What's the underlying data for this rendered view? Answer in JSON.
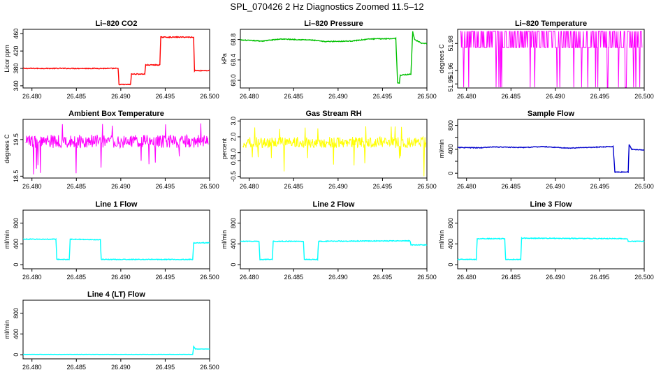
{
  "figure_title": "SPL_070426  2 Hz Diagnostics Zoomed 11.5–12",
  "chart_data": [
    {
      "type": "line",
      "title": "Li–820 CO2",
      "ylabel": "Licor ppm",
      "color": "#ff0000",
      "xlim": [
        26.479,
        26.5
      ],
      "ylim": [
        335,
        470
      ],
      "yticks": [
        340,
        380,
        420,
        460
      ],
      "xticks": [
        26.48,
        26.485,
        26.49,
        26.495,
        26.5
      ],
      "xtick_labels": [
        "26.480",
        "26.485",
        "26.490",
        "26.495",
        "26.500"
      ],
      "x": [
        26.479,
        26.4897,
        26.4898,
        26.4911,
        26.4912,
        26.4927,
        26.4928,
        26.4944,
        26.4945,
        26.4982,
        26.4983,
        26.5
      ],
      "y": [
        380,
        380,
        343,
        343,
        367,
        367,
        388,
        388,
        452,
        452,
        375,
        375
      ],
      "noise": 1
    },
    {
      "type": "line",
      "title": "Li–820 Pressure",
      "ylabel": "kPa",
      "color": "#00c000",
      "xlim": [
        26.479,
        26.5
      ],
      "ylim": [
        67.85,
        69.0
      ],
      "yticks": [
        68.0,
        68.4,
        68.8
      ],
      "ytick_labels": [
        "68.0",
        "68.4",
        "68.8"
      ],
      "xticks": [
        26.48,
        26.485,
        26.49,
        26.495,
        26.5
      ],
      "xtick_labels": [
        "26.480",
        "26.485",
        "26.490",
        "26.495",
        "26.500"
      ],
      "x": [
        26.479,
        26.4815,
        26.4835,
        26.487,
        26.4885,
        26.4915,
        26.4935,
        26.4965,
        26.4967,
        26.4969,
        26.497,
        26.4982,
        26.4984,
        26.4986,
        26.4995,
        26.5
      ],
      "y": [
        68.79,
        68.77,
        68.81,
        68.79,
        68.76,
        68.77,
        68.81,
        68.82,
        67.95,
        67.95,
        68.1,
        68.12,
        68.96,
        68.8,
        68.72,
        68.72
      ],
      "noise": 0.008
    },
    {
      "type": "line",
      "title": "Li–820 Temperature",
      "ylabel": "degrees C",
      "color": "#ff00ff",
      "xlim": [
        26.479,
        26.5
      ],
      "ylim": [
        51.947,
        51.9905
      ],
      "yticks": [
        51.95,
        51.96,
        51.98
      ],
      "ytick_labels": [
        "51.95",
        "51.96",
        "51.98"
      ],
      "xticks": [
        26.48,
        26.485,
        26.49,
        26.495,
        26.5
      ],
      "xtick_labels": [
        "26.480",
        "26.485",
        "26.490",
        "26.495",
        "26.500"
      ],
      "levels": [
        51.947,
        51.977,
        51.989
      ],
      "x_range": [
        26.4793,
        26.4998
      ]
    },
    {
      "type": "line",
      "title": "Ambient Box Temperature",
      "ylabel": "degrees C",
      "color": "#ff00ff",
      "xlim": [
        26.479,
        26.5
      ],
      "ylim": [
        18.45,
        20.05
      ],
      "yticks": [
        18.5,
        19.5
      ],
      "ytick_labels": [
        "18.5",
        "19.5"
      ],
      "xticks": [
        26.48,
        26.485,
        26.49,
        26.495,
        26.5
      ],
      "xtick_labels": [
        "26.480",
        "26.485",
        "26.490",
        "26.495",
        "26.500"
      ],
      "mean": 19.45,
      "band": 0.18,
      "spike_low": 18.55,
      "spike_high": 19.95
    },
    {
      "type": "line",
      "title": "Gas Stream RH",
      "ylabel": "percent",
      "color": "#ffff00",
      "xlim": [
        26.479,
        26.5
      ],
      "ylim": [
        -0.6,
        3.1
      ],
      "yticks": [
        -0.5,
        0.5,
        1.0,
        2.0,
        3.0
      ],
      "ytick_labels": [
        "-0.5",
        "0.5",
        "1.0",
        "2.0",
        "3.0"
      ],
      "xticks": [
        26.48,
        26.485,
        26.49,
        26.495,
        26.5
      ],
      "xtick_labels": [
        "26.480",
        "26.485",
        "26.490",
        "26.495",
        "26.500"
      ],
      "mean": 1.65,
      "band": 0.35,
      "spike_low": -0.5,
      "spike_high": 2.8
    },
    {
      "type": "line",
      "title": "Sample Flow",
      "ylabel": "ml/min",
      "color": "#0000cc",
      "xlim": [
        26.479,
        26.5
      ],
      "ylim": [
        -80,
        900
      ],
      "yticks": [
        0,
        200,
        400,
        600,
        800
      ],
      "ytick_labels": [
        "0",
        "",
        "400",
        "",
        "800"
      ],
      "xticks": [
        26.48,
        26.485,
        26.49,
        26.495,
        26.5
      ],
      "xtick_labels": [
        "26.480",
        "26.485",
        "26.490",
        "26.495",
        "26.500"
      ],
      "x": [
        26.479,
        26.4815,
        26.483,
        26.4865,
        26.4885,
        26.4915,
        26.4935,
        26.4965,
        26.4967,
        26.4982,
        26.4983,
        26.4986,
        26.4995,
        26.5
      ],
      "y": [
        430,
        425,
        440,
        430,
        445,
        420,
        430,
        445,
        20,
        20,
        480,
        400,
        390,
        390
      ],
      "noise": 6
    },
    {
      "type": "line",
      "title": "Line 1 Flow",
      "ylabel": "ml/min",
      "color": "#00ffff",
      "xlim": [
        26.479,
        26.5
      ],
      "ylim": [
        -80,
        1050
      ],
      "yticks": [
        0,
        400,
        800
      ],
      "ytick_labels": [
        "0",
        "400",
        "800"
      ],
      "xticks": [
        26.48,
        26.485,
        26.49,
        26.495,
        26.5
      ],
      "xtick_labels": [
        "26.480",
        "26.485",
        "26.490",
        "26.495",
        "26.500"
      ],
      "x": [
        26.479,
        26.4827,
        26.4828,
        26.4842,
        26.4843,
        26.4877,
        26.4878,
        26.4981,
        26.4982,
        26.4984,
        26.5
      ],
      "y": [
        490,
        490,
        100,
        100,
        490,
        480,
        100,
        100,
        420,
        420,
        420
      ],
      "noise": 7
    },
    {
      "type": "line",
      "title": "Line 2 Flow",
      "ylabel": "ml/min",
      "color": "#00ffff",
      "xlim": [
        26.479,
        26.5
      ],
      "ylim": [
        -80,
        1050
      ],
      "yticks": [
        0,
        400,
        800
      ],
      "ytick_labels": [
        "0",
        "400",
        "800"
      ],
      "xticks": [
        26.48,
        26.485,
        26.49,
        26.495,
        26.5
      ],
      "xtick_labels": [
        "26.480",
        "26.485",
        "26.490",
        "26.495",
        "26.500"
      ],
      "x": [
        26.479,
        26.4811,
        26.4812,
        26.4826,
        26.4827,
        26.4861,
        26.4862,
        26.4877,
        26.4878,
        26.4981,
        26.4982,
        26.5
      ],
      "y": [
        450,
        450,
        100,
        100,
        450,
        450,
        100,
        100,
        450,
        460,
        380,
        380
      ],
      "noise": 7
    },
    {
      "type": "line",
      "title": "Line 3 Flow",
      "ylabel": "ml/min",
      "color": "#00ffff",
      "xlim": [
        26.479,
        26.5
      ],
      "ylim": [
        -80,
        1050
      ],
      "yticks": [
        0,
        400,
        800
      ],
      "ytick_labels": [
        "0",
        "400",
        "800"
      ],
      "xticks": [
        26.48,
        26.485,
        26.49,
        26.495,
        26.5
      ],
      "xtick_labels": [
        "26.480",
        "26.485",
        "26.490",
        "26.495",
        "26.500"
      ],
      "x": [
        26.479,
        26.4811,
        26.4812,
        26.4843,
        26.4844,
        26.4861,
        26.4862,
        26.4981,
        26.4982,
        26.5
      ],
      "y": [
        100,
        100,
        500,
        500,
        100,
        100,
        510,
        500,
        450,
        450
      ],
      "noise": 7
    },
    {
      "type": "line",
      "title": "Line 4 (LT) Flow",
      "ylabel": "ml/min",
      "color": "#00ffff",
      "xlim": [
        26.479,
        26.5
      ],
      "ylim": [
        -80,
        1050
      ],
      "yticks": [
        0,
        400,
        800
      ],
      "ytick_labels": [
        "0",
        "400",
        "800"
      ],
      "xticks": [
        26.48,
        26.485,
        26.49,
        26.495,
        26.5
      ],
      "xtick_labels": [
        "26.480",
        "26.485",
        "26.490",
        "26.495",
        "26.500"
      ],
      "x": [
        26.479,
        26.4981,
        26.4982,
        26.4984,
        26.4986,
        26.5
      ],
      "y": [
        5,
        5,
        160,
        110,
        110,
        110
      ],
      "noise": 2
    }
  ]
}
